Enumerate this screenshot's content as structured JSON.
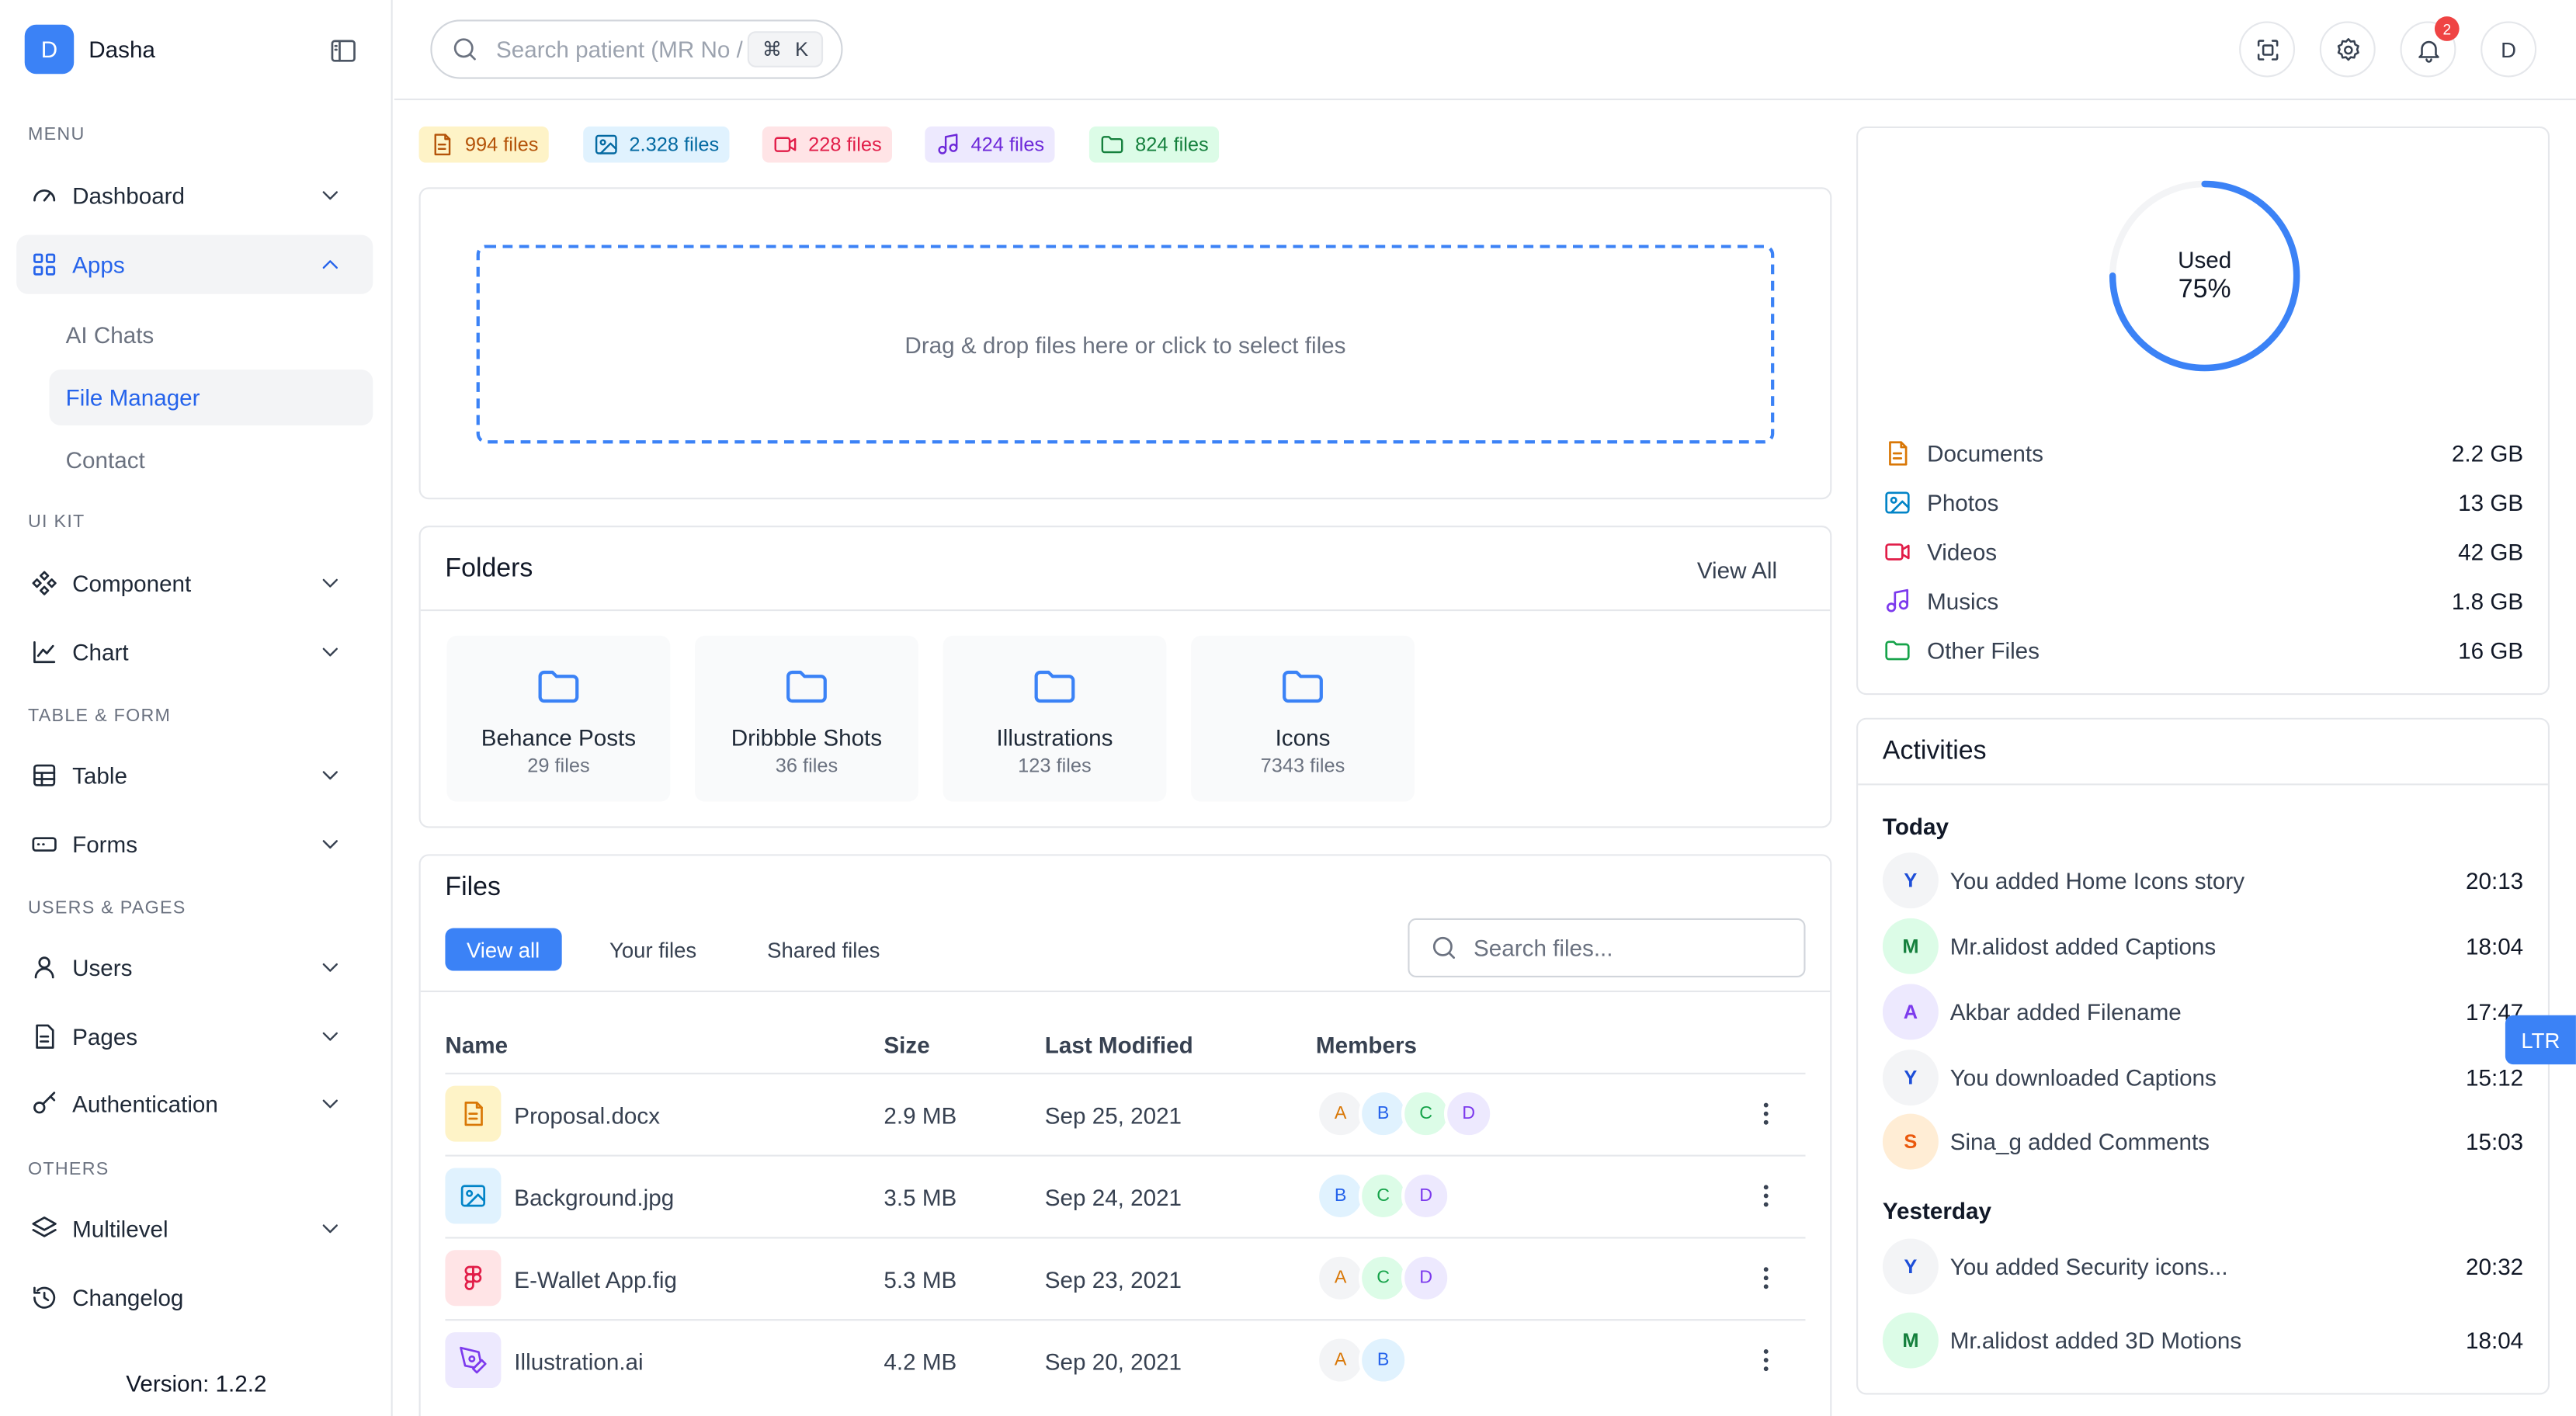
{
  "brand": {
    "initial": "D",
    "name": "Dasha"
  },
  "sidebar": {
    "sections": {
      "menu": "MENU",
      "ui_kit": "UI KIT",
      "table_form": "TABLE & FORM",
      "users_pages": "USERS & PAGES",
      "others": "OTHERS"
    },
    "items": {
      "dashboard": "Dashboard",
      "apps": "Apps",
      "component": "Component",
      "chart": "Chart",
      "table": "Table",
      "forms": "Forms",
      "users": "Users",
      "pages": "Pages",
      "authentication": "Authentication",
      "multilevel": "Multilevel",
      "changelog": "Changelog"
    },
    "apps_sub": {
      "ai_chats": "AI Chats",
      "file_manager": "File Manager",
      "contact": "Contact"
    },
    "version": "Version: 1.2.2"
  },
  "topbar": {
    "search_placeholder": "Search patient (MR No / Phone)",
    "kbd_cmd": "⌘",
    "kbd_key": "K",
    "notification_count": "2",
    "user_initial": "D"
  },
  "chips": {
    "documents": "994 files",
    "photos": "2.328 files",
    "videos": "228 files",
    "musics": "424 files",
    "other": "824 files"
  },
  "colors": {
    "accent": "#3b82f6",
    "documents": "#d97706",
    "photos": "#0284c7",
    "videos": "#e11d48",
    "musics": "#7c3aed",
    "other": "#16a34a"
  },
  "dropzone": {
    "text": "Drag & drop files here or click to select files"
  },
  "folders": {
    "title": "Folders",
    "view_all": "View All",
    "items": [
      {
        "name": "Behance Posts",
        "count": "29 files"
      },
      {
        "name": "Dribbble Shots",
        "count": "36 files"
      },
      {
        "name": "Illustrations",
        "count": "123 files"
      },
      {
        "name": "Icons",
        "count": "7343 files"
      }
    ]
  },
  "files": {
    "title": "Files",
    "tabs": [
      "View all",
      "Your files",
      "Shared files"
    ],
    "search_placeholder": "Search files...",
    "columns": {
      "name": "Name",
      "size": "Size",
      "modified": "Last Modified",
      "members": "Members"
    },
    "rows": [
      {
        "name": "Proposal.docx",
        "size": "2.9 MB",
        "modified": "Sep 25, 2021",
        "icon": "document-icon",
        "members": [
          "A",
          "B",
          "C",
          "D"
        ]
      },
      {
        "name": "Background.jpg",
        "size": "3.5 MB",
        "modified": "Sep 24, 2021",
        "icon": "image-icon",
        "members": [
          "B",
          "C",
          "D"
        ]
      },
      {
        "name": "E-Wallet App.fig",
        "size": "5.3 MB",
        "modified": "Sep 23, 2021",
        "icon": "figma-icon",
        "members": [
          "A",
          "C",
          "D"
        ]
      },
      {
        "name": "Illustration.ai",
        "size": "4.2 MB",
        "modified": "Sep 20, 2021",
        "icon": "pen-tool-icon",
        "members": [
          "A",
          "B"
        ]
      }
    ]
  },
  "storage": {
    "used_label": "Used",
    "used_percent": 75,
    "used_text": "75%",
    "categories": [
      {
        "name": "Documents",
        "value": "2.2 GB"
      },
      {
        "name": "Photos",
        "value": "13 GB"
      },
      {
        "name": "Videos",
        "value": "42 GB"
      },
      {
        "name": "Musics",
        "value": "1.8 GB"
      },
      {
        "name": "Other Files",
        "value": "16 GB"
      }
    ]
  },
  "activities": {
    "title": "Activities",
    "today_label": "Today",
    "yesterday_label": "Yesterday",
    "today": [
      {
        "initial": "Y",
        "text": "You added Home Icons story",
        "time": "20:13"
      },
      {
        "initial": "M",
        "text": "Mr.alidost added Captions",
        "time": "18:04"
      },
      {
        "initial": "A",
        "text": "Akbar added Filename",
        "time": "17:47"
      },
      {
        "initial": "Y",
        "text": "You downloaded Captions",
        "time": "15:12"
      },
      {
        "initial": "S",
        "text": "Sina_g added Comments",
        "time": "15:03"
      }
    ],
    "yesterday": [
      {
        "initial": "Y",
        "text": "You added Security icons...",
        "time": "20:32"
      },
      {
        "initial": "M",
        "text": "Mr.alidost added 3D Motions",
        "time": "18:04"
      }
    ]
  },
  "direction_toggle": "LTR"
}
